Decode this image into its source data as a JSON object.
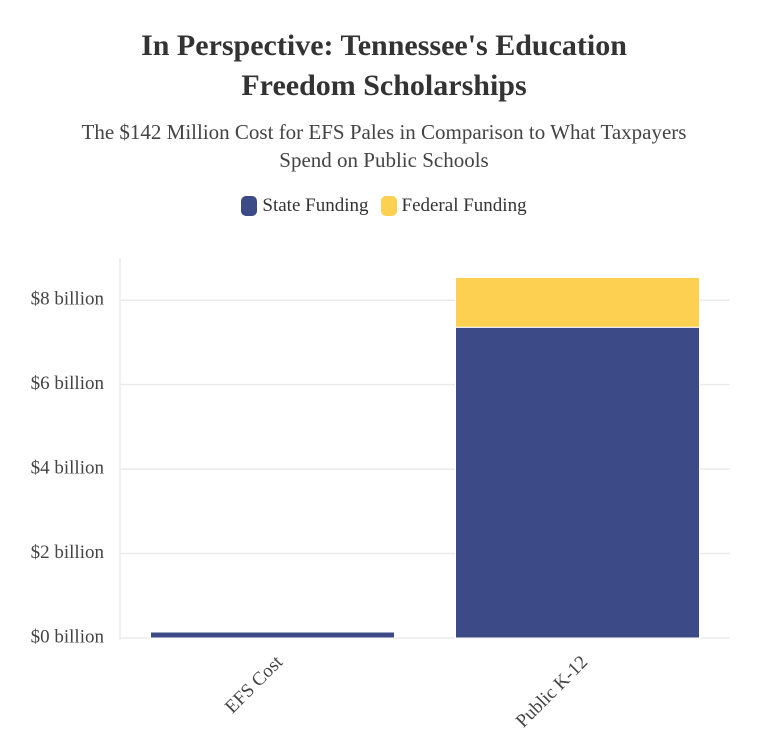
{
  "chart_data": {
    "type": "stacked_bar",
    "title": "In Perspective: Tennessee's Education Freedom Scholarships",
    "subtitle": "The $142 Million Cost for EFS Pales in Comparison to What Taxpayers Spend on Public Schools",
    "categories": [
      "EFS Cost",
      "Public K-12"
    ],
    "series": [
      {
        "name": "State Funding",
        "color": "#3c4b87",
        "values": [
          0.142,
          7.36
        ]
      },
      {
        "name": "Federal Funding",
        "color": "#fdd051",
        "values": [
          null,
          1.18
        ]
      }
    ],
    "ylim": [
      0,
      9
    ],
    "yticks": [
      {
        "value": 0,
        "label": "$0 billion"
      },
      {
        "value": 2,
        "label": "$2 billion"
      },
      {
        "value": 4,
        "label": "$4 billion"
      },
      {
        "value": 6,
        "label": "$6 billion"
      },
      {
        "value": 8,
        "label": "$8 billion"
      }
    ],
    "grid": true
  }
}
